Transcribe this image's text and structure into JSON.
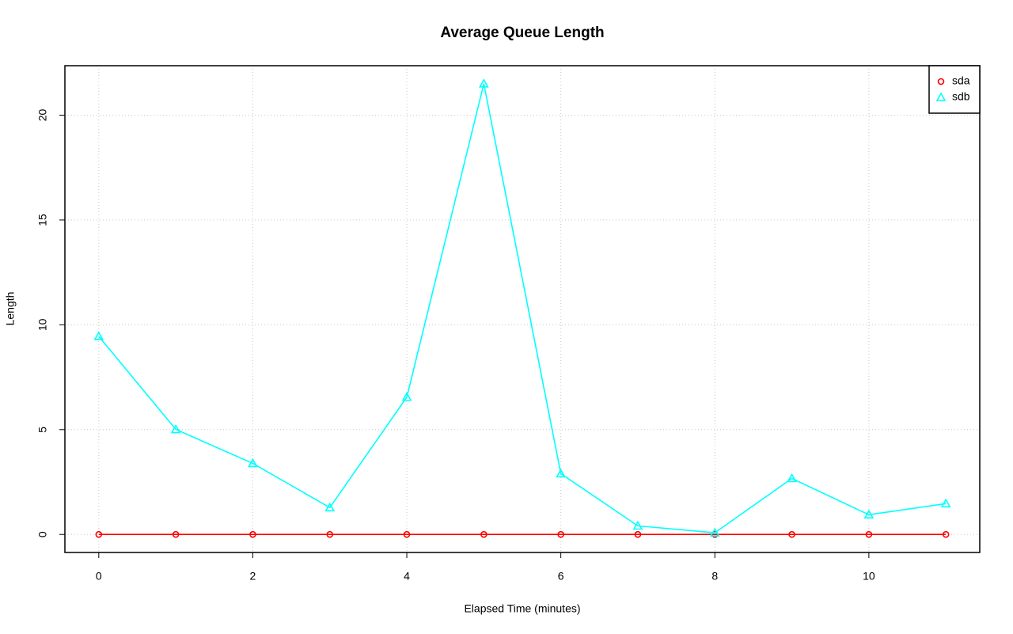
{
  "chart_data": {
    "type": "line",
    "title": "Average Queue Length",
    "x_label": "Elapsed Time (minutes)",
    "y_label": "Length",
    "x": [
      0,
      1,
      2,
      3,
      4,
      5,
      6,
      7,
      8,
      9,
      10,
      11
    ],
    "series": [
      {
        "name": "sda",
        "color": "#ff0000",
        "marker": "circle",
        "values": [
          0,
          0,
          0,
          0,
          0,
          0,
          0,
          0,
          0,
          0,
          0,
          0
        ]
      },
      {
        "name": "sdb",
        "color": "#00ffff",
        "marker": "triangle",
        "values": [
          9.45,
          5.01,
          3.39,
          1.28,
          6.55,
          21.5,
          2.9,
          0.41,
          0.08,
          2.67,
          0.94,
          1.47
        ]
      }
    ],
    "xlim": [
      -0.44,
      11.44
    ],
    "xticks": [
      0,
      2,
      4,
      6,
      8,
      10
    ],
    "ylim": [
      -0.86,
      22.36
    ],
    "yticks": [
      0,
      5,
      10,
      15,
      20
    ],
    "grid": true,
    "legend": "top-right"
  }
}
